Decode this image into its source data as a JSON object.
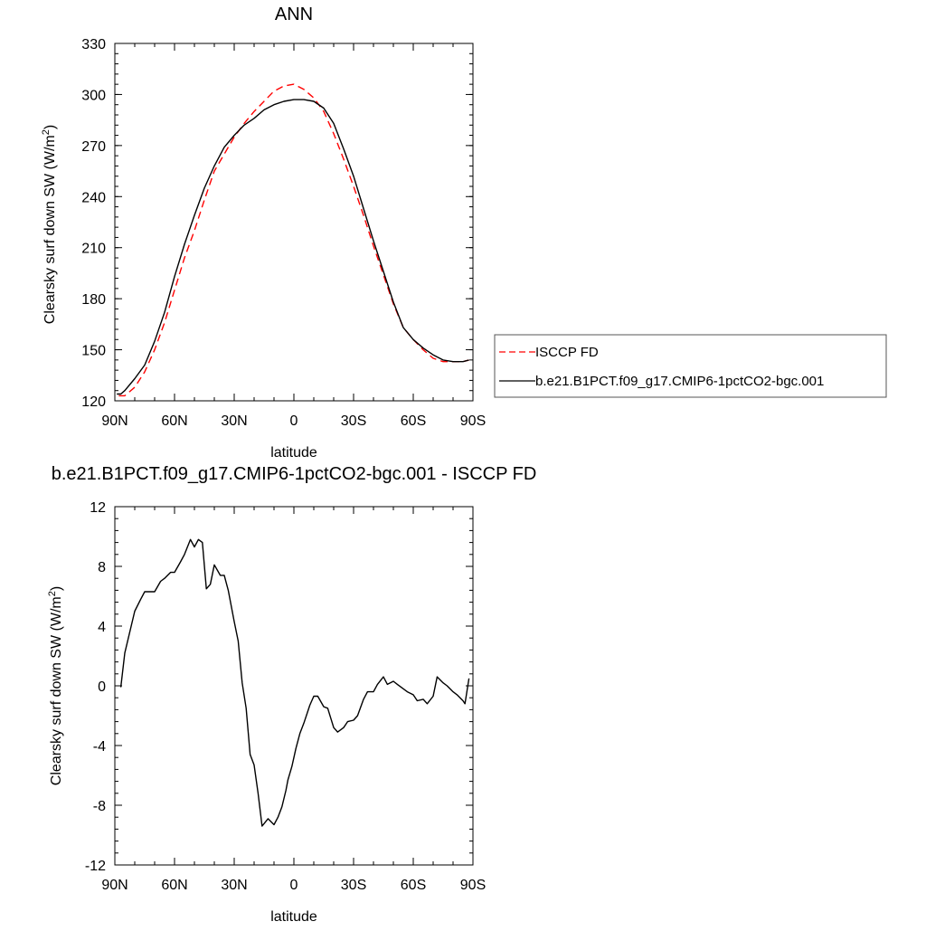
{
  "chart_data": [
    {
      "type": "line",
      "title": "ANN",
      "xlabel": "latitude",
      "ylabel": "Clearsky surf down SW (W/m",
      "ylabel_sup": "2",
      "ylabel_close": ")",
      "xlim": [
        90,
        -90
      ],
      "ylim": [
        120,
        330
      ],
      "xticks": [
        90,
        60,
        30,
        0,
        -30,
        -60,
        -90
      ],
      "xtick_labels": [
        "90N",
        "60N",
        "30N",
        "0",
        "30S",
        "60S",
        "90S"
      ],
      "yticks": [
        120,
        150,
        180,
        210,
        240,
        270,
        300,
        330
      ],
      "ytick_labels": [
        "120",
        "150",
        "180",
        "210",
        "240",
        "270",
        "300",
        "330"
      ],
      "legend": "right",
      "series": [
        {
          "name": "ISCCP FD",
          "color": "#ff0000",
          "dash": "dashed",
          "x": [
            88,
            85,
            80,
            75,
            70,
            65,
            60,
            55,
            50,
            45,
            40,
            35,
            30,
            25,
            20,
            15,
            10,
            5,
            0,
            -5,
            -10,
            -15,
            -20,
            -25,
            -30,
            -35,
            -40,
            -45,
            -50,
            -55,
            -60,
            -65,
            -70,
            -75,
            -80,
            -85,
            -88
          ],
          "y": [
            123,
            123,
            128,
            137,
            150,
            166,
            185,
            204,
            220,
            238,
            255,
            265,
            275,
            283,
            290,
            296,
            302,
            305,
            306,
            303,
            298,
            290,
            277,
            262,
            246,
            229,
            211,
            194,
            177,
            163,
            156,
            150,
            145,
            143,
            143,
            143,
            144
          ]
        },
        {
          "name": "b.e21.B1PCT.f09_g17.CMIP6-1pctCO2-bgc.001",
          "color": "#000000",
          "dash": "solid",
          "x": [
            89,
            87,
            85,
            80,
            75,
            70,
            65,
            60,
            55,
            50,
            45,
            40,
            35,
            30,
            25,
            20,
            15,
            10,
            5,
            0,
            -5,
            -10,
            -15,
            -20,
            -25,
            -30,
            -35,
            -40,
            -45,
            -50,
            -55,
            -60,
            -65,
            -70,
            -75,
            -80,
            -85,
            -88
          ],
          "y": [
            124,
            124,
            126,
            133,
            141,
            155,
            172,
            193,
            212,
            229,
            245,
            258,
            269,
            276,
            282,
            286,
            291,
            294,
            296,
            297,
            297,
            296,
            292,
            283,
            268,
            252,
            233,
            214,
            196,
            178,
            163,
            156,
            151,
            147,
            144,
            143,
            143,
            144
          ]
        }
      ]
    },
    {
      "type": "line",
      "title": "b.e21.B1PCT.f09_g17.CMIP6-1pctCO2-bgc.001 - ISCCP FD",
      "xlabel": "latitude",
      "ylabel": "Clearsky surf down SW (W/m",
      "ylabel_sup": "2",
      "ylabel_close": ")",
      "xlim": [
        90,
        -90
      ],
      "ylim": [
        -12,
        12
      ],
      "xticks": [
        90,
        60,
        30,
        0,
        -30,
        -60,
        -90
      ],
      "xtick_labels": [
        "90N",
        "60N",
        "30N",
        "0",
        "30S",
        "60S",
        "90S"
      ],
      "yticks": [
        -12,
        -8,
        -4,
        0,
        4,
        8,
        12
      ],
      "ytick_labels": [
        "-12",
        "-8",
        "-4",
        "0",
        "4",
        "8",
        "12"
      ],
      "series": [
        {
          "color": "#000000",
          "dash": "solid",
          "x": [
            87,
            85,
            80,
            77,
            75,
            72,
            70,
            67,
            65,
            62,
            60,
            57,
            55,
            52,
            50,
            48,
            46,
            44,
            42,
            40,
            37,
            35,
            33,
            30,
            28,
            26,
            24,
            22,
            20,
            18,
            16,
            13,
            10,
            8,
            6,
            4,
            3,
            1,
            -1,
            -3,
            -5,
            -8,
            -10,
            -12,
            -15,
            -17,
            -20,
            -22,
            -25,
            -27,
            -30,
            -32,
            -35,
            -37,
            -40,
            -42,
            -45,
            -47,
            -50,
            -52,
            -55,
            -57,
            -60,
            -62,
            -65,
            -67,
            -70,
            -72,
            -75,
            -77,
            -80,
            -82,
            -85,
            -86,
            -88
          ],
          "y": [
            -0.1,
            2.2,
            5.0,
            5.8,
            6.3,
            6.3,
            6.3,
            7.0,
            7.2,
            7.6,
            7.6,
            8.3,
            8.8,
            9.8,
            9.3,
            9.8,
            9.6,
            6.5,
            6.8,
            8.1,
            7.4,
            7.4,
            6.4,
            4.3,
            3.0,
            0.2,
            -1.5,
            -4.6,
            -5.3,
            -7.2,
            -9.4,
            -8.9,
            -9.3,
            -8.8,
            -8.1,
            -7.0,
            -6.3,
            -5.4,
            -4.2,
            -3.2,
            -2.5,
            -1.3,
            -0.7,
            -0.7,
            -1.4,
            -1.5,
            -2.8,
            -3.1,
            -2.8,
            -2.4,
            -2.3,
            -2.0,
            -0.9,
            -0.4,
            -0.4,
            0.1,
            0.6,
            0.1,
            0.3,
            0.1,
            -0.2,
            -0.4,
            -0.6,
            -1.0,
            -0.9,
            -1.2,
            -0.7,
            0.6,
            0.2,
            0.0,
            -0.4,
            -0.6,
            -1.0,
            -1.2,
            0.5
          ]
        }
      ]
    }
  ]
}
